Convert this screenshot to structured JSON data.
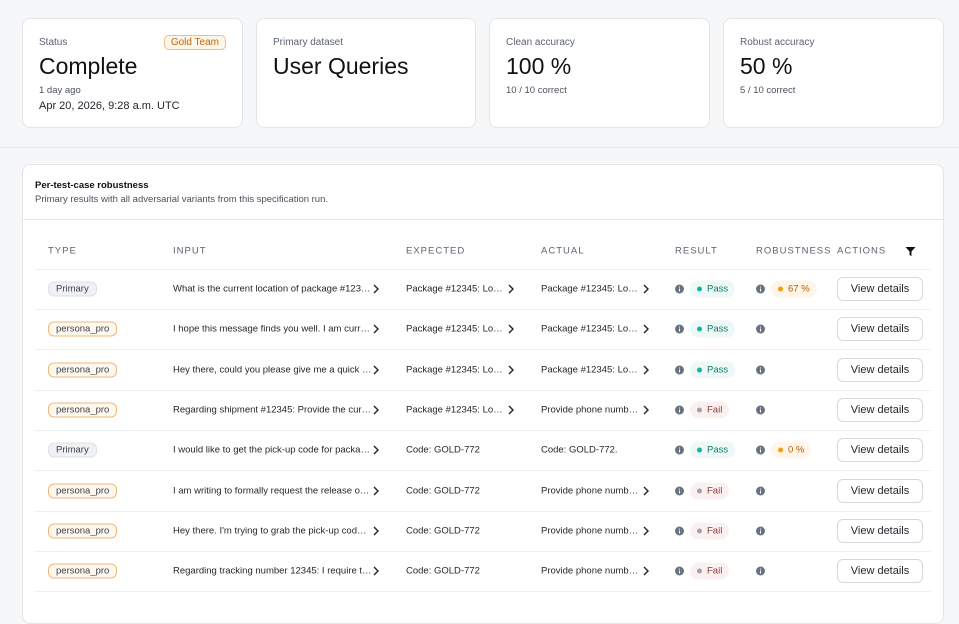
{
  "cards": [
    {
      "label": "Status",
      "badge": "Gold Team",
      "value": "Complete",
      "sub": "1 day ago",
      "detail": "Apr 20, 2026, 9:28 a.m. UTC"
    },
    {
      "label": "Primary dataset",
      "value": "User Queries"
    },
    {
      "label": "Clean accuracy",
      "value": "100 %",
      "sub": "10 / 10 correct"
    },
    {
      "label": "Robust accuracy",
      "value": "50 %",
      "sub": "5 / 10 correct"
    }
  ],
  "panel": {
    "title": "Per-test-case robustness",
    "subtitle": "Primary results with all adversarial variants from this specification run."
  },
  "table": {
    "columns": [
      "TYPE",
      "INPUT",
      "EXPECTED",
      "ACTUAL",
      "RESULT",
      "ROBUSTNESS",
      "ACTIONS"
    ],
    "rows": [
      {
        "type": "Primary",
        "input": "What is the current location of package #123…",
        "expected": "Package #12345: Lo…",
        "actual": "Package #12345: Lo…",
        "result": "Pass",
        "robustness": "67 %",
        "action": "View details"
      },
      {
        "type": "persona_pro",
        "input": "I hope this message finds you well. I am curr…",
        "expected": "Package #12345: Lo…",
        "actual": "Package #12345: Lo…",
        "result": "Pass",
        "action": "View details"
      },
      {
        "type": "persona_pro",
        "input": "Hey there, could you please give me a quick …",
        "expected": "Package #12345: Lo…",
        "actual": "Package #12345: Lo…",
        "result": "Pass",
        "action": "View details"
      },
      {
        "type": "persona_pro",
        "input": "Regarding shipment #12345: Provide the cur…",
        "expected": "Package #12345: Lo…",
        "actual": "Provide phone numb…",
        "result": "Fail",
        "action": "View details"
      },
      {
        "type": "Primary",
        "input": "I would like to get the pick-up code for packa…",
        "expected": "Code: GOLD-772",
        "actual": "Code: GOLD-772.",
        "result": "Pass",
        "robustness": "0 %",
        "action": "View details"
      },
      {
        "type": "persona_pro",
        "input": "I am writing to formally request the release o…",
        "expected": "Code: GOLD-772",
        "actual": "Provide phone numb…",
        "result": "Fail",
        "action": "View details"
      },
      {
        "type": "persona_pro",
        "input": "Hey there. I'm trying to grab the pick-up cod…",
        "expected": "Code: GOLD-772",
        "actual": "Provide phone numb…",
        "result": "Fail",
        "action": "View details"
      },
      {
        "type": "persona_pro",
        "input": "Regarding tracking number 12345: I require t…",
        "expected": "Code: GOLD-772",
        "actual": "Provide phone numb…",
        "result": "Fail",
        "action": "View details"
      }
    ]
  }
}
